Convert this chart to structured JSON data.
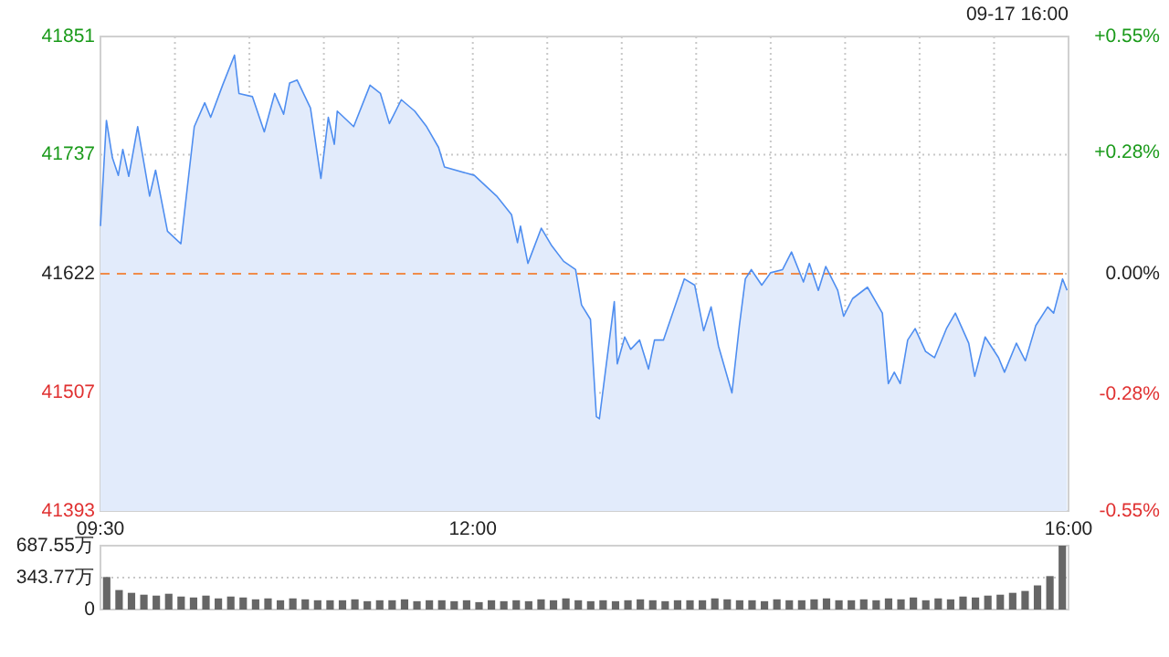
{
  "chart_data": [
    {
      "type": "area",
      "subtitle": "09-17 16:00",
      "x": [
        9.5,
        9.54,
        9.58,
        9.62,
        9.65,
        9.69,
        9.75,
        9.83,
        9.87,
        9.95,
        10.04,
        10.13,
        10.2,
        10.24,
        10.32,
        10.4,
        10.43,
        10.52,
        10.6,
        10.67,
        10.73,
        10.77,
        10.82,
        10.91,
        10.98,
        11.03,
        11.07,
        11.09,
        11.2,
        11.31,
        11.38,
        11.44,
        11.52,
        11.61,
        11.69,
        11.77,
        11.81,
        12.01,
        12.16,
        12.26,
        12.3,
        12.32,
        12.37,
        12.46,
        12.53,
        12.61,
        12.69,
        12.73,
        12.79,
        12.83,
        12.85,
        12.95,
        12.97,
        13.02,
        13.06,
        13.12,
        13.18,
        13.22,
        13.28,
        13.38,
        13.42,
        13.49,
        13.55,
        13.6,
        13.65,
        13.74,
        13.79,
        13.83,
        13.87,
        13.94,
        14.0,
        14.08,
        14.14,
        14.22,
        14.26,
        14.32,
        14.37,
        14.45,
        14.49,
        14.55,
        14.65,
        14.75,
        14.79,
        14.83,
        14.87,
        14.92,
        14.97,
        15.04,
        15.1,
        15.18,
        15.24,
        15.33,
        15.37,
        15.44,
        15.53,
        15.57,
        15.65,
        15.71,
        15.78,
        15.86,
        15.9,
        15.96,
        15.99
      ],
      "series": [
        {
          "color": "#4f8ef0",
          "values": [
            41668,
            41770,
            41734,
            41717,
            41742,
            41716,
            41764,
            41697,
            41722,
            41663,
            41651,
            41764,
            41787,
            41773,
            41804,
            41833,
            41796,
            41793,
            41759,
            41796,
            41776,
            41806,
            41809,
            41782,
            41714,
            41773,
            41747,
            41779,
            41764,
            41804,
            41796,
            41767,
            41790,
            41779,
            41764,
            41744,
            41725,
            41717,
            41697,
            41679,
            41652,
            41668,
            41632,
            41666,
            41649,
            41634,
            41626,
            41592,
            41578,
            41484,
            41482,
            41595,
            41535,
            41561,
            41549,
            41558,
            41530,
            41558,
            41558,
            41600,
            41617,
            41611,
            41567,
            41590,
            41552,
            41507,
            41572,
            41617,
            41626,
            41611,
            41623,
            41626,
            41643,
            41614,
            41632,
            41606,
            41629,
            41606,
            41581,
            41598,
            41609,
            41584,
            41516,
            41527,
            41516,
            41558,
            41569,
            41547,
            41541,
            41569,
            41584,
            41555,
            41523,
            41561,
            41541,
            41527,
            41555,
            41538,
            41572,
            41590,
            41584,
            41617,
            41606
          ]
        }
      ],
      "xlim": [
        9.5,
        16
      ],
      "xticks": [
        {
          "value": 9.5,
          "label": "09:30"
        },
        {
          "value": 10,
          "label": null
        },
        {
          "value": 10.5,
          "label": null
        },
        {
          "value": 11,
          "label": null
        },
        {
          "value": 11.5,
          "label": null
        },
        {
          "value": 12,
          "label": "12:00"
        },
        {
          "value": 12.5,
          "label": null
        },
        {
          "value": 13,
          "label": null
        },
        {
          "value": 13.5,
          "label": null
        },
        {
          "value": 14,
          "label": null
        },
        {
          "value": 14.5,
          "label": null
        },
        {
          "value": 15,
          "label": null
        },
        {
          "value": 15.5,
          "label": null
        },
        {
          "value": 16,
          "label": "16:00"
        }
      ],
      "ylim": [
        41393,
        41851
      ],
      "yticks": [
        41393,
        41507,
        41622,
        41737,
        41851
      ],
      "y2lim": [
        -0.55,
        0.55
      ],
      "y2ticks": [
        {
          "value": -0.55,
          "label": "-0.55%"
        },
        {
          "value": -0.28,
          "label": "-0.28%"
        },
        {
          "value": 0,
          "label": "0.00%"
        },
        {
          "value": 0.28,
          "label": "+0.28%"
        },
        {
          "value": 0.55,
          "label": "+0.55%"
        }
      ],
      "ref_lines": [
        {
          "axis": "y",
          "value": 41622,
          "color": "#f08c4a",
          "line_style": "dashed"
        }
      ],
      "grid": true
    },
    {
      "type": "bar",
      "color": "#666666",
      "tick_labels": "y",
      "grid": "y",
      "categories": [
        null,
        null,
        null,
        null,
        null,
        null,
        null,
        null,
        null,
        null,
        null,
        null,
        null,
        null,
        null,
        null,
        null,
        null,
        null,
        null,
        null,
        null,
        null,
        null,
        null,
        null,
        null,
        null,
        null,
        null,
        null,
        null,
        null,
        null,
        null,
        null,
        null,
        null,
        null,
        null,
        null,
        null,
        null,
        null,
        null,
        null,
        null,
        null,
        null,
        null,
        null,
        null,
        null,
        null,
        null,
        null,
        null,
        null,
        null,
        null,
        null,
        null,
        null,
        null,
        null,
        null,
        null,
        null,
        null,
        null,
        null,
        null,
        null,
        null,
        null,
        null,
        null,
        null
      ],
      "values": [
        350,
        210,
        180,
        160,
        150,
        170,
        140,
        130,
        150,
        120,
        140,
        130,
        110,
        120,
        100,
        120,
        110,
        100,
        100,
        100,
        110,
        90,
        100,
        100,
        110,
        90,
        100,
        100,
        90,
        100,
        80,
        100,
        90,
        100,
        90,
        110,
        100,
        120,
        100,
        90,
        100,
        90,
        100,
        110,
        100,
        90,
        100,
        100,
        100,
        120,
        110,
        100,
        100,
        90,
        110,
        100,
        100,
        110,
        120,
        100,
        100,
        110,
        100,
        120,
        110,
        130,
        100,
        120,
        110,
        140,
        130,
        150,
        160,
        180,
        200,
        260,
        360,
        687.55
      ],
      "ylim": [
        0,
        687.55
      ],
      "yticks": [
        0,
        {
          "value": 343.77,
          "label": "343.77万"
        },
        {
          "value": 687.55,
          "label": "687.55万"
        }
      ]
    }
  ]
}
